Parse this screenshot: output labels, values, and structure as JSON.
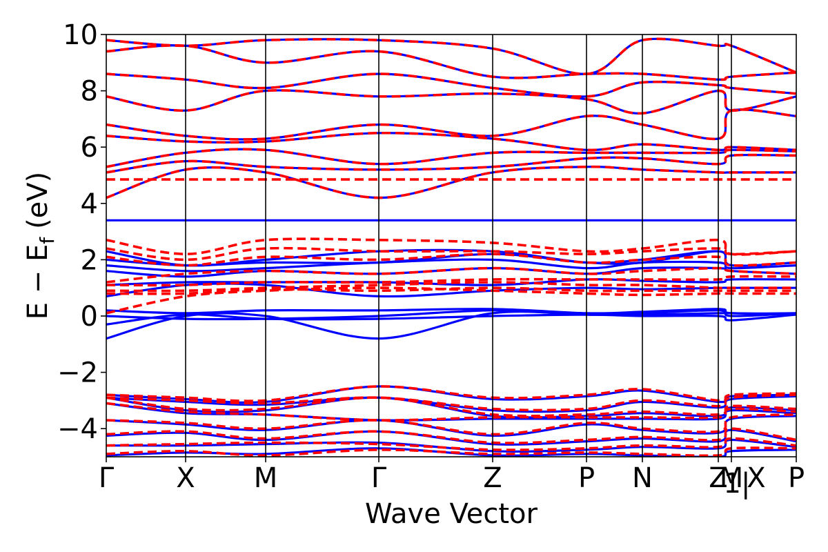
{
  "chart_data": {
    "type": "line",
    "title": "",
    "xlabel": "Wave Vector",
    "ylabel": "E − E",
    "ylabel_subscript": "f",
    "ylabel_unit": "(eV)",
    "ylim": [
      -5,
      10
    ],
    "yticks": [
      -4,
      -2,
      0,
      2,
      4,
      6,
      8,
      10
    ],
    "ytick_labels": [
      "−4",
      "−2",
      "0",
      "2",
      "4",
      "6",
      "8",
      "10"
    ],
    "xlim": [
      0,
      10
    ],
    "kpoints": [
      {
        "x": 0.0,
        "label": "Γ"
      },
      {
        "x": 1.15,
        "label": "X"
      },
      {
        "x": 2.31,
        "label": "M"
      },
      {
        "x": 3.95,
        "label": "Γ"
      },
      {
        "x": 5.6,
        "label": "Z"
      },
      {
        "x": 6.96,
        "label": "P"
      },
      {
        "x": 7.77,
        "label": "N"
      },
      {
        "x": 8.87,
        "label": "Z"
      },
      {
        "x": 9.06,
        "label": "M"
      },
      {
        "x": 10.0,
        "label": "P"
      }
    ],
    "extra_labels": [
      {
        "x": 9.06,
        "label": "1|"
      },
      {
        "x": 9.42,
        "label": "X"
      }
    ],
    "series": [
      {
        "name": "bands-red-dashed",
        "color": "#ff0000",
        "dash": true,
        "x": [
          0,
          1.15,
          2.31,
          3.95,
          5.6,
          6.96,
          7.77,
          8.87,
          9.06,
          10
        ],
        "bands": [
          [
            -4.9,
            -4.8,
            -4.95,
            -4.75,
            -4.9,
            -4.85,
            -4.9,
            -4.95,
            -4.7,
            -4.7
          ],
          [
            -4.6,
            -4.55,
            -4.5,
            -4.55,
            -4.75,
            -4.7,
            -4.6,
            -4.65,
            -4.35,
            -4.6
          ],
          [
            -4.2,
            -4.1,
            -4.35,
            -4.1,
            -4.5,
            -4.4,
            -4.3,
            -4.4,
            -4.0,
            -4.4
          ],
          [
            -3.7,
            -3.8,
            -4.0,
            -3.7,
            -4.2,
            -3.8,
            -4.0,
            -4.1,
            -3.6,
            -3.5
          ],
          [
            -3.1,
            -3.4,
            -3.5,
            -3.7,
            -3.6,
            -3.6,
            -3.6,
            -3.6,
            -3.3,
            -3.4
          ],
          [
            -2.9,
            -3.3,
            -3.3,
            -2.9,
            -3.5,
            -3.5,
            -3.4,
            -3.5,
            -3.2,
            -3.3
          ],
          [
            -2.9,
            -3.0,
            -3.1,
            -2.9,
            -3.3,
            -3.3,
            -3.0,
            -3.2,
            -2.9,
            -2.8
          ],
          [
            -2.8,
            -2.9,
            -3.0,
            -2.5,
            -2.9,
            -2.8,
            -2.6,
            -3.0,
            -2.8,
            -2.75
          ],
          [
            0.1,
            0.7,
            0.9,
            1.0,
            0.9,
            0.8,
            0.75,
            0.8,
            0.8,
            0.8
          ],
          [
            0.8,
            0.8,
            0.95,
            0.9,
            1.0,
            0.9,
            0.9,
            0.9,
            0.9,
            0.9
          ],
          [
            0.9,
            0.9,
            1.0,
            1.1,
            1.2,
            1.1,
            1.1,
            1.0,
            1.0,
            1.0
          ],
          [
            1.1,
            1.1,
            1.2,
            1.2,
            1.3,
            1.3,
            1.3,
            1.3,
            1.4,
            1.4
          ],
          [
            1.2,
            1.5,
            1.6,
            1.5,
            1.7,
            1.5,
            1.6,
            1.7,
            1.6,
            1.5
          ],
          [
            2.1,
            1.8,
            2.1,
            2.0,
            2.2,
            1.9,
            2.0,
            2.1,
            1.8,
            1.9
          ],
          [
            2.4,
            2.0,
            2.4,
            2.3,
            2.3,
            2.2,
            2.3,
            2.4,
            2.2,
            2.3
          ],
          [
            2.7,
            2.2,
            2.7,
            2.7,
            2.6,
            2.3,
            2.4,
            2.7,
            2.2,
            2.3
          ],
          [
            4.85,
            4.85,
            4.85,
            4.85,
            4.85,
            4.85,
            4.85,
            4.85,
            4.85,
            4.85
          ],
          [
            4.2,
            5.2,
            5.1,
            4.2,
            5.1,
            5.3,
            5.2,
            5.1,
            5.1,
            5.1
          ],
          [
            5.1,
            5.5,
            5.3,
            5.2,
            5.3,
            5.6,
            5.6,
            5.4,
            5.7,
            5.7
          ],
          [
            5.3,
            5.8,
            5.9,
            5.4,
            5.8,
            5.8,
            5.8,
            5.8,
            5.9,
            5.85
          ],
          [
            6.4,
            6.2,
            6.2,
            6.5,
            6.3,
            5.9,
            6.1,
            5.9,
            6.0,
            5.9
          ],
          [
            6.8,
            6.4,
            6.3,
            6.8,
            6.4,
            7.1,
            6.8,
            6.3,
            7.3,
            7.1
          ],
          [
            7.8,
            7.3,
            8.0,
            7.8,
            7.9,
            7.7,
            7.2,
            8.0,
            7.3,
            7.8
          ],
          [
            8.6,
            8.4,
            8.1,
            8.6,
            8.1,
            7.8,
            8.3,
            8.2,
            8.1,
            7.9
          ],
          [
            9.4,
            9.6,
            9.0,
            9.4,
            8.5,
            8.6,
            8.6,
            8.4,
            8.5,
            8.65
          ],
          [
            9.8,
            9.6,
            9.8,
            9.8,
            9.5,
            8.6,
            9.8,
            9.6,
            9.6,
            8.65
          ]
        ]
      },
      {
        "name": "bands-blue-solid",
        "color": "#0000ff",
        "dash": false,
        "x": [
          0,
          1.15,
          2.31,
          3.95,
          5.6,
          6.96,
          7.77,
          8.87,
          9.06,
          10
        ],
        "bands": [
          [
            -4.95,
            -4.85,
            -4.9,
            -4.7,
            -4.95,
            -4.9,
            -4.95,
            -5.0,
            -4.8,
            -4.75
          ],
          [
            -4.6,
            -4.6,
            -4.55,
            -4.5,
            -4.8,
            -4.75,
            -4.65,
            -4.7,
            -4.4,
            -4.65
          ],
          [
            -4.25,
            -4.15,
            -4.4,
            -4.1,
            -4.55,
            -4.45,
            -4.35,
            -4.45,
            -4.05,
            -4.45
          ],
          [
            -3.7,
            -3.85,
            -4.05,
            -3.7,
            -4.25,
            -3.85,
            -4.05,
            -4.15,
            -3.65,
            -3.55
          ],
          [
            -3.1,
            -3.45,
            -3.5,
            -3.7,
            -3.65,
            -3.65,
            -3.65,
            -3.65,
            -3.35,
            -3.45
          ],
          [
            -2.9,
            -3.35,
            -3.35,
            -2.9,
            -3.55,
            -3.55,
            -3.45,
            -3.55,
            -3.25,
            -3.35
          ],
          [
            -2.9,
            -3.05,
            -3.15,
            -2.9,
            -3.35,
            -3.35,
            -3.05,
            -3.25,
            -2.95,
            -2.85
          ],
          [
            -2.8,
            -2.95,
            -3.05,
            -2.5,
            -2.95,
            -2.85,
            -2.65,
            -3.05,
            -2.85,
            -2.8
          ],
          [
            -0.8,
            0.0,
            0.0,
            -0.8,
            0.1,
            0.05,
            0.05,
            0.1,
            0.1,
            0.05
          ],
          [
            -0.3,
            0.05,
            -0.1,
            -0.1,
            0.0,
            0.05,
            0.0,
            0.0,
            -0.15,
            0.05
          ],
          [
            0.0,
            -0.1,
            -0.1,
            0.0,
            0.2,
            0.05,
            0.1,
            0.2,
            0.0,
            0.1
          ],
          [
            0.2,
            0.1,
            0.2,
            0.2,
            0.25,
            0.1,
            0.15,
            0.25,
            0.1,
            0.1
          ],
          [
            0.7,
            1.1,
            1.1,
            0.7,
            0.9,
            1.0,
            0.95,
            1.0,
            1.0,
            1.0
          ],
          [
            1.1,
            1.2,
            1.2,
            1.2,
            1.1,
            1.3,
            1.25,
            1.2,
            1.3,
            1.3
          ],
          [
            1.6,
            1.4,
            1.6,
            1.5,
            1.7,
            1.5,
            1.7,
            1.7,
            1.6,
            1.5
          ],
          [
            1.8,
            1.6,
            1.7,
            1.9,
            2.0,
            1.7,
            1.9,
            1.9,
            1.7,
            1.8
          ],
          [
            2.0,
            1.8,
            1.9,
            1.9,
            2.2,
            1.9,
            1.9,
            2.3,
            1.8,
            1.9
          ],
          [
            2.3,
            1.8,
            2.0,
            2.3,
            2.3,
            1.9,
            2.0,
            2.3,
            1.8,
            1.9
          ],
          [
            3.4,
            3.4,
            3.4,
            3.4,
            3.4,
            3.4,
            3.4,
            3.4,
            3.4,
            3.4
          ],
          [
            4.2,
            5.2,
            5.1,
            4.2,
            5.1,
            5.3,
            5.2,
            5.1,
            5.1,
            5.1
          ],
          [
            5.1,
            5.5,
            5.3,
            5.2,
            5.3,
            5.6,
            5.6,
            5.4,
            5.7,
            5.7
          ],
          [
            5.3,
            5.8,
            5.9,
            5.4,
            5.8,
            5.8,
            5.8,
            5.8,
            5.9,
            5.85
          ],
          [
            6.4,
            6.2,
            6.2,
            6.5,
            6.3,
            5.9,
            6.1,
            5.9,
            6.0,
            5.9
          ],
          [
            6.8,
            6.4,
            6.3,
            6.8,
            6.4,
            7.1,
            6.8,
            6.3,
            7.3,
            7.1
          ],
          [
            7.8,
            7.3,
            8.0,
            7.8,
            7.9,
            7.7,
            7.2,
            8.0,
            7.3,
            7.8
          ],
          [
            8.6,
            8.4,
            8.1,
            8.6,
            8.1,
            7.8,
            8.3,
            8.2,
            8.1,
            7.9
          ],
          [
            9.4,
            9.6,
            9.0,
            9.4,
            8.5,
            8.6,
            8.6,
            8.4,
            8.5,
            8.65
          ],
          [
            9.8,
            9.6,
            9.8,
            9.8,
            9.5,
            8.6,
            9.8,
            9.6,
            9.6,
            8.65
          ]
        ]
      }
    ]
  }
}
